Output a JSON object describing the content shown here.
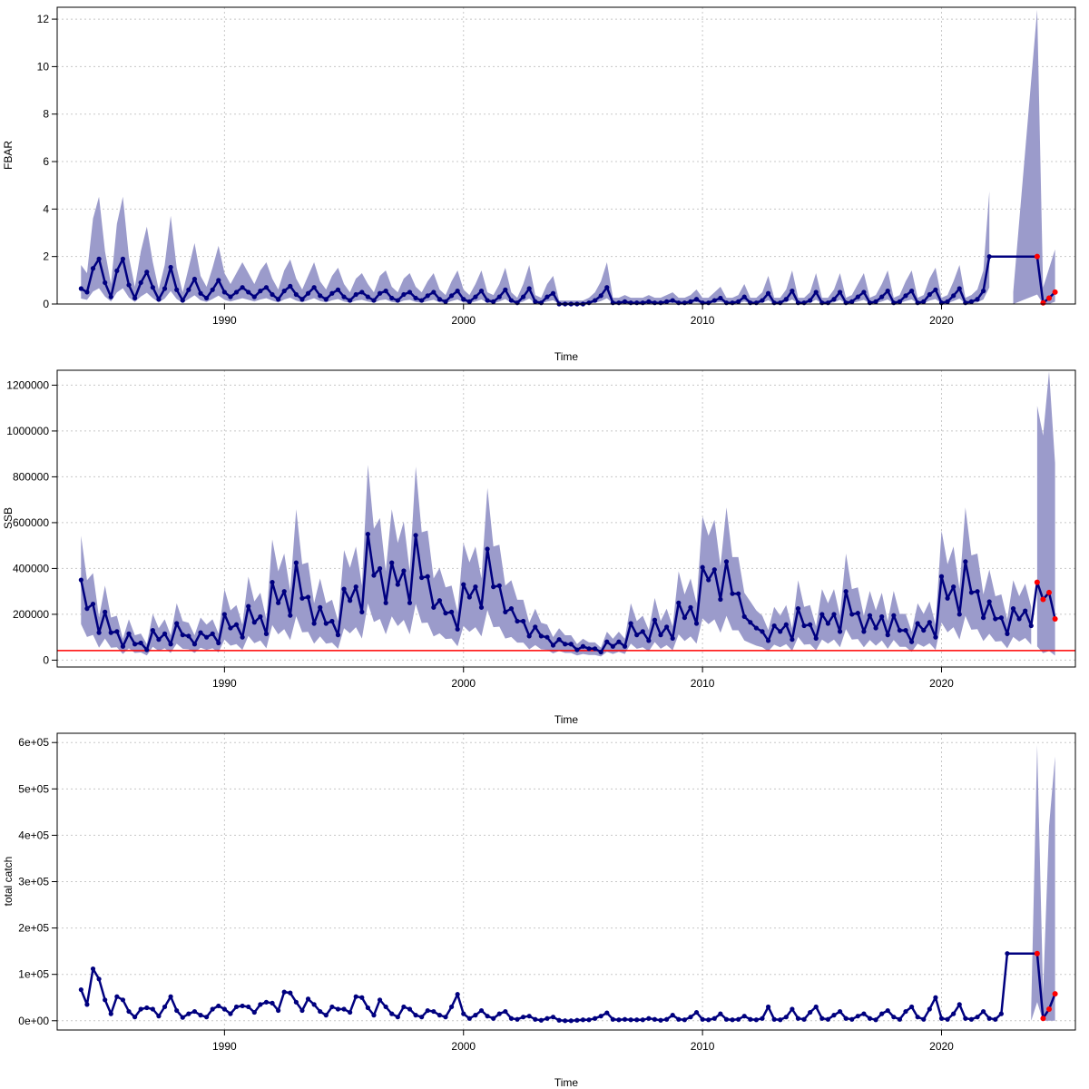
{
  "colors": {
    "band": "#9b9bcb",
    "line": "#00007f",
    "highlight": "#ff0000",
    "reference": "#ff0000"
  },
  "chart_data": [
    {
      "type": "line",
      "xlabel": "Time",
      "ylabel": "FBAR",
      "ylim": [
        0,
        12.5
      ],
      "yticks": [
        0,
        2,
        4,
        6,
        8,
        10,
        12
      ],
      "ytick_labels": [
        "0",
        "2",
        "4",
        "6",
        "8",
        "10",
        "12"
      ],
      "xlim": [
        1983,
        2025.6
      ],
      "xticks": [
        1990,
        2000,
        2010,
        2020
      ],
      "xtick_labels": [
        "1990",
        "2000",
        "2010",
        "2020"
      ],
      "grid": true,
      "reference_line": null,
      "hi_multiplier": 2.3,
      "lo_multiplier": 0.35,
      "base": [
        0.65,
        0.5,
        1.5,
        1.9,
        0.9,
        0.3,
        1.4,
        1.9,
        0.8,
        0.25,
        0.9,
        1.35,
        0.7,
        0.2,
        0.65,
        1.55,
        0.6,
        0.15,
        0.6,
        1.05,
        0.45,
        0.25,
        0.6,
        1.0,
        0.5,
        0.3,
        0.5,
        0.7,
        0.5,
        0.3,
        0.55,
        0.7,
        0.4,
        0.2,
        0.55,
        0.75,
        0.4,
        0.2,
        0.45,
        0.7,
        0.35,
        0.2,
        0.45,
        0.6,
        0.3,
        0.15,
        0.4,
        0.5,
        0.3,
        0.15,
        0.45,
        0.55,
        0.25,
        0.15,
        0.4,
        0.5,
        0.25,
        0.15,
        0.35,
        0.5,
        0.2,
        0.1,
        0.35,
        0.55,
        0.2,
        0.1,
        0.3,
        0.55,
        0.15,
        0.1,
        0.3,
        0.6,
        0.15,
        0.05,
        0.3,
        0.65,
        0.1,
        0.05,
        0.3,
        0.45,
        0.0,
        0.0,
        0.0,
        0.0,
        0.0,
        0.05,
        0.15,
        0.35,
        0.7,
        0.05,
        0.05,
        0.1,
        0.05,
        0.05,
        0.05,
        0.1,
        0.05,
        0.05,
        0.1,
        0.15,
        0.05,
        0.05,
        0.1,
        0.2,
        0.05,
        0.05,
        0.15,
        0.25,
        0.05,
        0.05,
        0.1,
        0.3,
        0.05,
        0.05,
        0.15,
        0.45,
        0.05,
        0.05,
        0.2,
        0.55,
        0.05,
        0.05,
        0.15,
        0.5,
        0.05,
        0.05,
        0.2,
        0.5,
        0.05,
        0.1,
        0.3,
        0.5,
        0.05,
        0.1,
        0.3,
        0.55,
        0.05,
        0.1,
        0.35,
        0.55,
        0.05,
        0.1,
        0.4,
        0.6,
        0.05,
        0.1,
        0.35,
        0.65,
        0.05,
        0.1,
        0.2,
        0.55,
        2.0
      ],
      "highlight": [
        [
          2024.0,
          2.0
        ],
        [
          2024.25,
          0.05
        ],
        [
          2024.5,
          0.25
        ],
        [
          2024.75,
          0.5
        ]
      ],
      "tail_band": {
        "x": [
          2023.0,
          2024.0,
          2024.25,
          2024.5,
          2024.75
        ],
        "hi": [
          0.5,
          12.4,
          0.7,
          1.5,
          2.3
        ],
        "lo": [
          0.0,
          0.4,
          0.0,
          0.0,
          0.1
        ]
      }
    },
    {
      "type": "line",
      "xlabel": "Time",
      "ylabel": "SSB",
      "ylim": [
        -30000,
        1265000
      ],
      "yticks": [
        0,
        200000,
        400000,
        600000,
        800000,
        1000000,
        1200000
      ],
      "ytick_labels": [
        "0",
        "200000",
        "400000",
        "600000",
        "800000",
        "1000000",
        "1200000"
      ],
      "xlim": [
        1983,
        2025.6
      ],
      "xticks": [
        1990,
        2000,
        2010,
        2020
      ],
      "xtick_labels": [
        "1990",
        "2000",
        "2010",
        "2020"
      ],
      "grid": true,
      "reference_line": 42000,
      "hi_multiplier": 1.55,
      "lo_multiplier": 0.45,
      "base": [
        350000,
        225000,
        245000,
        120000,
        210000,
        120000,
        125000,
        60000,
        115000,
        70000,
        75000,
        45000,
        130000,
        90000,
        115000,
        70000,
        160000,
        110000,
        105000,
        70000,
        120000,
        100000,
        115000,
        75000,
        200000,
        140000,
        155000,
        100000,
        235000,
        165000,
        190000,
        115000,
        340000,
        250000,
        300000,
        195000,
        425000,
        270000,
        275000,
        160000,
        230000,
        160000,
        170000,
        110000,
        310000,
        260000,
        320000,
        210000,
        550000,
        370000,
        400000,
        250000,
        425000,
        330000,
        390000,
        250000,
        545000,
        360000,
        365000,
        230000,
        260000,
        205000,
        210000,
        135000,
        330000,
        275000,
        320000,
        230000,
        485000,
        320000,
        325000,
        210000,
        225000,
        170000,
        170000,
        105000,
        145000,
        105000,
        100000,
        65000,
        90000,
        70000,
        70000,
        45000,
        60000,
        50000,
        50000,
        35000,
        80000,
        60000,
        80000,
        60000,
        160000,
        110000,
        125000,
        85000,
        175000,
        110000,
        145000,
        95000,
        250000,
        185000,
        230000,
        160000,
        405000,
        350000,
        395000,
        265000,
        430000,
        290000,
        290000,
        190000,
        165000,
        140000,
        125000,
        85000,
        150000,
        125000,
        155000,
        90000,
        225000,
        150000,
        155000,
        95000,
        200000,
        160000,
        200000,
        125000,
        300000,
        200000,
        205000,
        125000,
        195000,
        140000,
        190000,
        110000,
        195000,
        130000,
        130000,
        80000,
        160000,
        130000,
        165000,
        100000,
        365000,
        270000,
        320000,
        200000,
        430000,
        295000,
        300000,
        185000,
        255000,
        180000,
        185000,
        115000,
        225000,
        180000,
        215000,
        150000
      ],
      "highlight": [
        [
          2024.0,
          340000
        ],
        [
          2024.25,
          265000
        ],
        [
          2024.5,
          295000
        ],
        [
          2024.75,
          180000
        ]
      ],
      "tail_band": {
        "x": [
          2024.0,
          2024.25,
          2024.5,
          2024.75
        ],
        "hi": [
          1110000,
          980000,
          1260000,
          860000
        ],
        "lo": [
          60000,
          30000,
          40000,
          20000
        ]
      }
    },
    {
      "type": "line",
      "xlabel": "Time",
      "ylabel": "total catch",
      "ylim": [
        -20000,
        620000
      ],
      "yticks": [
        0,
        100000,
        200000,
        300000,
        400000,
        500000,
        600000
      ],
      "ytick_labels": [
        "0e+00",
        "1e+05",
        "2e+05",
        "3e+05",
        "4e+05",
        "5e+05",
        "6e+05"
      ],
      "xlim": [
        1983,
        2025.6
      ],
      "xticks": [
        1990,
        2000,
        2010,
        2020
      ],
      "xtick_labels": [
        "1990",
        "2000",
        "2010",
        "2020"
      ],
      "grid": true,
      "reference_line": null,
      "hi_multiplier": 1.0,
      "lo_multiplier": 1.0,
      "base": [
        67000,
        35000,
        112000,
        90000,
        45000,
        15000,
        52000,
        45000,
        20000,
        8000,
        25000,
        28000,
        25000,
        10000,
        30000,
        52000,
        22000,
        7000,
        15000,
        20000,
        12000,
        8000,
        25000,
        32000,
        25000,
        15000,
        30000,
        32000,
        30000,
        18000,
        35000,
        40000,
        38000,
        22000,
        62000,
        60000,
        40000,
        22000,
        47000,
        35000,
        20000,
        12000,
        30000,
        25000,
        25000,
        18000,
        52000,
        50000,
        28000,
        12000,
        45000,
        30000,
        15000,
        8000,
        30000,
        25000,
        12000,
        8000,
        22000,
        20000,
        12000,
        8000,
        30000,
        57000,
        15000,
        5000,
        12000,
        22000,
        10000,
        5000,
        15000,
        20000,
        5000,
        3000,
        8000,
        10000,
        3000,
        1000,
        5000,
        8000,
        1000,
        0,
        0,
        1000,
        2000,
        2000,
        5000,
        10000,
        17000,
        3000,
        2000,
        3000,
        2000,
        2000,
        2000,
        5000,
        3000,
        1000,
        3000,
        12000,
        3000,
        2000,
        8000,
        18000,
        3000,
        2000,
        5000,
        15000,
        3000,
        2000,
        3000,
        10000,
        3000,
        2000,
        5000,
        30000,
        3000,
        2000,
        8000,
        25000,
        5000,
        3000,
        18000,
        30000,
        5000,
        3000,
        12000,
        20000,
        5000,
        3000,
        10000,
        15000,
        5000,
        2000,
        15000,
        22000,
        8000,
        3000,
        20000,
        30000,
        8000,
        3000,
        25000,
        50000,
        5000,
        3000,
        15000,
        35000,
        5000,
        3000,
        8000,
        20000,
        5000,
        3000,
        15000,
        145000
      ],
      "highlight": [
        [
          2024.0,
          145000
        ],
        [
          2024.25,
          5000
        ],
        [
          2024.5,
          25000
        ],
        [
          2024.75,
          58000
        ]
      ],
      "tail_band": {
        "x": [
          2023.75,
          2024.0,
          2024.25,
          2024.5,
          2024.75
        ],
        "hi": [
          25000,
          595000,
          60000,
          420000,
          570000
        ],
        "lo": [
          0,
          40000,
          0,
          0,
          0
        ]
      }
    }
  ]
}
